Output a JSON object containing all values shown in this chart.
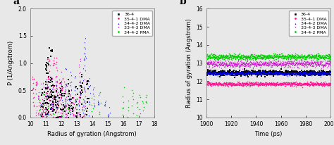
{
  "panel_a": {
    "title": "a",
    "xlabel": "Radius of gyration (Angstrom)",
    "ylabel": "P (1/Angstrom)",
    "xlim": [
      10,
      18
    ],
    "ylim": [
      0.0,
      2.0
    ],
    "xticks": [
      10,
      11,
      12,
      13,
      14,
      15,
      16,
      17,
      18
    ],
    "yticks": [
      0.0,
      0.5,
      1.0,
      1.5,
      2.0
    ],
    "series": [
      {
        "label": "36-4",
        "color": "#000000",
        "marker": "s",
        "peaks": [
          10.8,
          11.0,
          11.15,
          11.35,
          11.5,
          11.65,
          11.8,
          12.0,
          12.2,
          12.5,
          12.7,
          13.0,
          13.3,
          13.7
        ],
        "peak_heights": [
          0.55,
          1.05,
          1.15,
          1.3,
          0.8,
          0.55,
          0.5,
          0.65,
          0.45,
          0.7,
          0.5,
          0.6,
          0.8,
          0.7
        ],
        "n_pts_scale": 18
      },
      {
        "label": "35-4-1 DMA",
        "color": "#FF1493",
        "marker": "o",
        "peaks": [
          10.2,
          10.4,
          10.6,
          10.8,
          11.0,
          11.2,
          11.5,
          11.7,
          11.9,
          12.1,
          12.3,
          12.5,
          12.8,
          13.1,
          13.4
        ],
        "peak_heights": [
          0.8,
          0.65,
          0.5,
          0.5,
          0.75,
          1.2,
          1.15,
          1.1,
          0.7,
          0.75,
          0.6,
          0.5,
          0.45,
          0.4,
          0.3
        ],
        "n_pts_scale": 18
      },
      {
        "label": "34-4-2 DMA",
        "color": "#0000FF",
        "marker": "^",
        "peaks": [
          10.7,
          10.9,
          11.1,
          11.4,
          11.7,
          12.0,
          12.3,
          12.6,
          12.9,
          13.2,
          13.5,
          13.8,
          14.1,
          14.4,
          14.8,
          15.1
        ],
        "peak_heights": [
          0.35,
          0.45,
          0.55,
          0.55,
          0.6,
          0.7,
          0.9,
          0.85,
          0.75,
          0.7,
          1.45,
          0.65,
          0.55,
          0.45,
          0.35,
          0.25
        ],
        "n_pts_scale": 16
      },
      {
        "label": "33-4-3 DMA",
        "color": "#CC00CC",
        "marker": "v",
        "peaks": [
          10.5,
          10.8,
          11.1,
          11.4,
          11.7,
          12.0,
          12.3,
          12.6,
          12.9,
          13.2,
          13.5
        ],
        "peak_heights": [
          0.45,
          0.7,
          0.85,
          0.8,
          0.75,
          0.65,
          0.6,
          0.45,
          0.35,
          1.1,
          0.8
        ],
        "n_pts_scale": 18
      },
      {
        "label": "34-4-2 PMA",
        "color": "#00CC00",
        "marker": "o",
        "peaks": [
          10.6,
          10.9,
          11.2,
          11.5,
          11.8,
          12.1,
          12.5,
          13.0,
          13.5,
          14.0,
          14.5,
          16.0,
          16.3,
          16.6,
          16.9,
          17.1,
          17.3,
          17.5
        ],
        "peak_heights": [
          0.35,
          0.45,
          0.4,
          0.35,
          0.3,
          0.45,
          0.5,
          0.45,
          0.45,
          0.4,
          0.45,
          0.6,
          0.45,
          0.5,
          0.35,
          0.4,
          0.45,
          0.45
        ],
        "n_pts_scale": 12
      }
    ]
  },
  "panel_b": {
    "title": "b",
    "xlabel": "Time (ps)",
    "ylabel": "Radius of gyration (Angstrom)",
    "xlim": [
      1900,
      2000
    ],
    "ylim": [
      10,
      16
    ],
    "xticks": [
      1900,
      1920,
      1940,
      1960,
      1980,
      2000
    ],
    "yticks": [
      10,
      11,
      12,
      13,
      14,
      15,
      16
    ],
    "series": [
      {
        "label": "36-4",
        "color": "#000000",
        "marker": "s",
        "mean": 12.45,
        "noise": 0.07
      },
      {
        "label": "35-4-1 DMA",
        "color": "#FF1493",
        "marker": "o",
        "mean": 11.85,
        "noise": 0.05
      },
      {
        "label": "34-4-2 DMA",
        "color": "#0000FF",
        "marker": "^",
        "mean": 12.45,
        "noise": 0.05
      },
      {
        "label": "33-4-3 DMA",
        "color": "#CC00CC",
        "marker": "v",
        "mean": 12.95,
        "noise": 0.09
      },
      {
        "label": "34-4-2 PMA",
        "color": "#00CC00",
        "marker": "o",
        "mean": 13.35,
        "noise": 0.07
      }
    ],
    "n_points": 800
  },
  "figure_bg": "#e8e8e8",
  "axes_bg": "#e8e8e8",
  "markersize": 1.2
}
